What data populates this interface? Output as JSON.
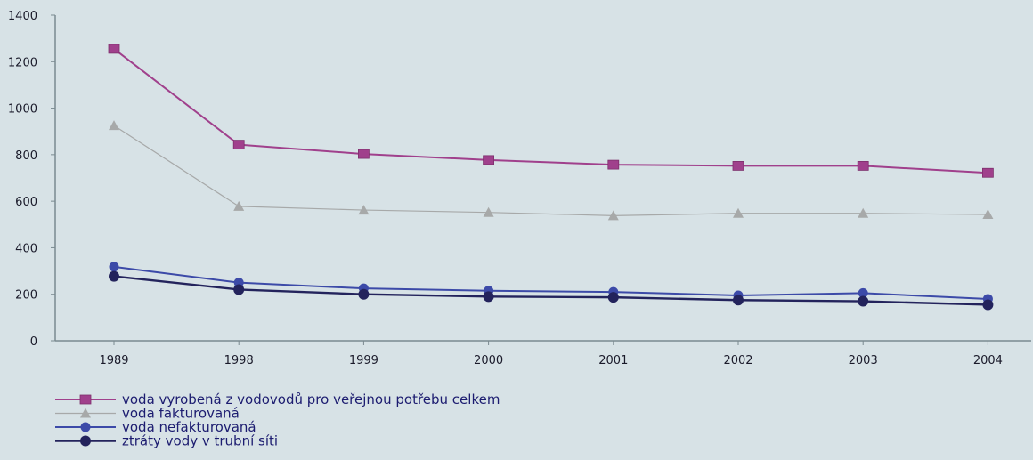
{
  "chart_data": {
    "type": "line",
    "categories": [
      "1989",
      "1998",
      "1999",
      "2000",
      "2001",
      "2002",
      "2003",
      "2004"
    ],
    "ylim": [
      0,
      1400
    ],
    "yticks": [
      "0",
      "200",
      "400",
      "600",
      "800",
      "1000",
      "1200",
      "1400"
    ],
    "grid": false,
    "legend_position": "bottom-left",
    "series": [
      {
        "name": "voda vyrobená z vodovodů pro veřejnou potřebu celkem",
        "values": [
          1255,
          843,
          803,
          777,
          757,
          752,
          752,
          722
        ],
        "color": "#a0408c",
        "marker": "square"
      },
      {
        "name": "voda fakturovaná",
        "values": [
          925,
          578,
          562,
          552,
          538,
          548,
          548,
          543
        ],
        "color": "#a7a9a9",
        "marker": "triangle"
      },
      {
        "name": "voda nefakturovaná",
        "values": [
          318,
          250,
          225,
          215,
          210,
          195,
          205,
          180
        ],
        "color": "#3c4aa8",
        "marker": "circle"
      },
      {
        "name": "ztráty vody v trubní síti",
        "values": [
          277,
          220,
          200,
          190,
          187,
          175,
          170,
          155
        ],
        "color": "#23235c",
        "marker": "dot"
      }
    ]
  }
}
